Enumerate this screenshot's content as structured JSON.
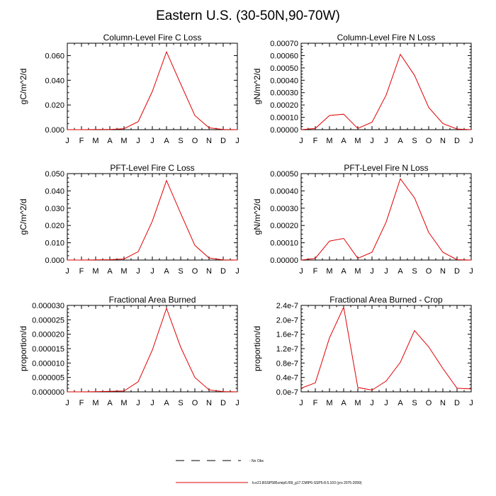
{
  "title": "Eastern U.S. (30-50N,90-70W)",
  "colors": {
    "series": "#e00000",
    "axis": "#000000",
    "obs": "#000000"
  },
  "legend": {
    "obs_label": "- No Obs",
    "model_label": "b.e21.BSSP585cmip6.f09_g17.CMIP6-SSP5-8.5.103 (yrs 2075-2099)"
  },
  "chart_data": [
    {
      "type": "line",
      "title": "Column-Level Fire C Loss",
      "ylabel": "gC/m^2/d",
      "categories": [
        "J",
        "F",
        "M",
        "A",
        "M",
        "J",
        "J",
        "A",
        "S",
        "O",
        "N",
        "D",
        "J"
      ],
      "ylim": [
        0,
        0.07
      ],
      "yticks": [
        0,
        0.02,
        0.04,
        0.06
      ],
      "ytick_labels": [
        "0.000",
        "0.020",
        "0.040",
        "0.060"
      ],
      "series": [
        {
          "values": [
            0.0,
            0.0,
            0.0001,
            0.0002,
            0.0008,
            0.0065,
            0.031,
            0.063,
            0.037,
            0.0115,
            0.0015,
            0.0001,
            0.0
          ]
        }
      ]
    },
    {
      "type": "line",
      "title": "Column-Level Fire N Loss",
      "ylabel": "gN/m^2/d",
      "categories": [
        "J",
        "F",
        "M",
        "A",
        "M",
        "J",
        "J",
        "A",
        "S",
        "O",
        "N",
        "D",
        "J"
      ],
      "ylim": [
        0,
        0.0007
      ],
      "yticks": [
        0,
        0.0001,
        0.0002,
        0.0003,
        0.0004,
        0.0005,
        0.0006,
        0.0007
      ],
      "ytick_labels": [
        "0.00000",
        "0.00010",
        "0.00020",
        "0.00030",
        "0.00040",
        "0.00050",
        "0.00060",
        "0.00070"
      ],
      "series": [
        {
          "values": [
            0.0,
            1e-05,
            0.000115,
            0.000125,
            1e-05,
            6e-05,
            0.00028,
            0.00061,
            0.00044,
            0.00018,
            5e-05,
            5e-06,
            0.0
          ]
        }
      ]
    },
    {
      "type": "line",
      "title": "PFT-Level Fire C Loss",
      "ylabel": "gC/m^2/d",
      "categories": [
        "J",
        "F",
        "M",
        "A",
        "M",
        "J",
        "J",
        "A",
        "S",
        "O",
        "N",
        "D",
        "J"
      ],
      "ylim": [
        0,
        0.05
      ],
      "yticks": [
        0,
        0.01,
        0.02,
        0.03,
        0.04,
        0.05
      ],
      "ytick_labels": [
        "0.000",
        "0.010",
        "0.020",
        "0.030",
        "0.040",
        "0.050"
      ],
      "series": [
        {
          "values": [
            0.0,
            0.0,
            0.0001,
            0.0002,
            0.0006,
            0.0048,
            0.0225,
            0.046,
            0.027,
            0.0085,
            0.0012,
            0.0001,
            0.0
          ]
        }
      ]
    },
    {
      "type": "line",
      "title": "PFT-Level Fire N Loss",
      "ylabel": "gN/m^2/d",
      "categories": [
        "J",
        "F",
        "M",
        "A",
        "M",
        "J",
        "J",
        "A",
        "S",
        "O",
        "N",
        "D",
        "J"
      ],
      "ylim": [
        0,
        0.0005
      ],
      "yticks": [
        0,
        0.0001,
        0.0002,
        0.0003,
        0.0004,
        0.0005
      ],
      "ytick_labels": [
        "0.00000",
        "0.00010",
        "0.00020",
        "0.00030",
        "0.00040",
        "0.00050"
      ],
      "series": [
        {
          "values": [
            0.0,
            1e-05,
            0.00011,
            0.000125,
            1e-05,
            4.5e-05,
            0.00022,
            0.00047,
            0.00036,
            0.00016,
            4.5e-05,
            2e-06,
            0.0
          ]
        }
      ]
    },
    {
      "type": "line",
      "title": "Fractional Area Burned",
      "ylabel": "proportion/d",
      "categories": [
        "J",
        "F",
        "M",
        "A",
        "M",
        "J",
        "J",
        "A",
        "S",
        "O",
        "N",
        "D",
        "J"
      ],
      "ylim": [
        0,
        3e-05
      ],
      "yticks": [
        0,
        5e-06,
        1e-05,
        1.5e-05,
        2e-05,
        2.5e-05,
        3e-05
      ],
      "ytick_labels": [
        "0.000000",
        "0.000005",
        "0.000010",
        "0.000015",
        "0.000020",
        "0.000025",
        "0.000030"
      ],
      "series": [
        {
          "values": [
            0.0,
            0.0,
            5e-08,
            2e-07,
            3e-07,
            3.5e-06,
            1.45e-05,
            2.9e-05,
            1.55e-05,
            5e-06,
            7e-07,
            1e-07,
            0.0
          ]
        }
      ]
    },
    {
      "type": "line",
      "title": "Fractional Area Burned - Crop",
      "ylabel": "proportion/d",
      "categories": [
        "J",
        "F",
        "M",
        "A",
        "M",
        "J",
        "J",
        "A",
        "S",
        "O",
        "N",
        "D",
        "J"
      ],
      "ylim": [
        0,
        2.4e-07
      ],
      "yticks": [
        0,
        4e-08,
        8e-08,
        1.2e-07,
        1.6e-07,
        2e-07,
        2.4e-07
      ],
      "ytick_labels": [
        "0.0e-7",
        "0.4e-7",
        "0.8e-7",
        "1.2e-7",
        "1.6e-7",
        "2.0e-7",
        "2.4e-7"
      ],
      "series": [
        {
          "values": [
            1e-08,
            2.5e-08,
            1.5e-07,
            2.35e-07,
            1.2e-08,
            5e-09,
            3e-08,
            8.2e-08,
            1.7e-07,
            1.25e-07,
            6.5e-08,
            1e-08,
            8e-09
          ]
        }
      ]
    }
  ]
}
